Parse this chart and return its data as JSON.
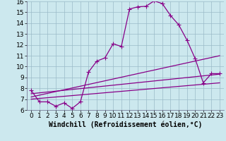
{
  "xlabel": "Windchill (Refroidissement éolien,°C)",
  "bg_color": "#cce8ee",
  "line_color": "#880088",
  "xlim": [
    -0.5,
    23.5
  ],
  "ylim": [
    6,
    16
  ],
  "yticks": [
    6,
    7,
    8,
    9,
    10,
    11,
    12,
    13,
    14,
    15,
    16
  ],
  "xticks": [
    0,
    1,
    2,
    3,
    4,
    5,
    6,
    7,
    8,
    9,
    10,
    11,
    12,
    13,
    14,
    15,
    16,
    17,
    18,
    19,
    20,
    21,
    22,
    23
  ],
  "series_main": {
    "x": [
      0,
      1,
      2,
      3,
      4,
      5,
      6,
      7,
      8,
      9,
      10,
      11,
      12,
      13,
      14,
      15,
      16,
      17,
      18,
      19,
      20,
      21,
      22,
      23
    ],
    "y": [
      7.8,
      6.75,
      6.75,
      6.35,
      6.65,
      6.15,
      6.75,
      9.5,
      10.5,
      10.8,
      12.1,
      11.85,
      15.3,
      15.5,
      15.55,
      16.05,
      15.8,
      14.7,
      13.85,
      12.45,
      10.75,
      8.5,
      9.35,
      9.35
    ]
  },
  "lines": [
    {
      "x": [
        0,
        23
      ],
      "y": [
        7.5,
        9.3
      ]
    },
    {
      "x": [
        0,
        23
      ],
      "y": [
        7.0,
        8.5
      ]
    },
    {
      "x": [
        0,
        23
      ],
      "y": [
        7.2,
        11.0
      ]
    }
  ],
  "marker": "+",
  "markersize": 4,
  "linewidth": 0.9,
  "font_size": 6.5,
  "xlabel_fontsize": 7
}
